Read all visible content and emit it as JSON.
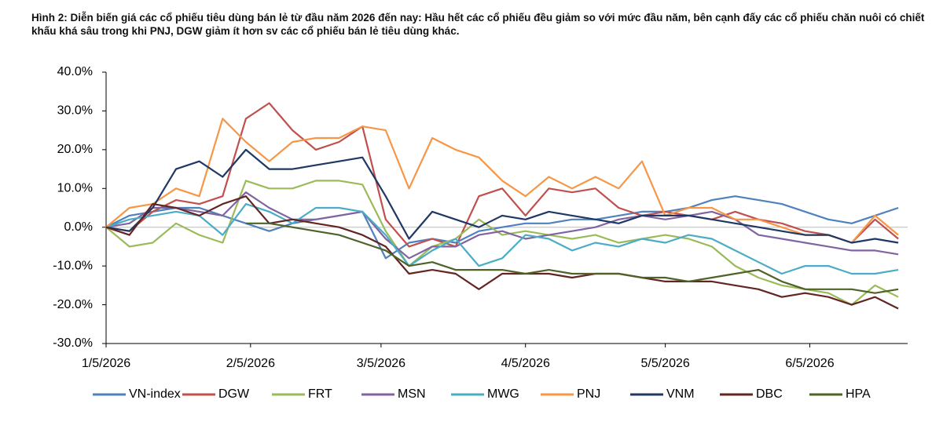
{
  "chart_data": {
    "type": "line",
    "title": "Hình 2: Diễn biến giá các cổ phiếu tiêu dùng bán lẻ từ đầu năm 2026 đến nay: Hầu hết các cổ phiếu đều giảm so với mức đầu năm, bên cạnh đấy các cổ phiếu chăn nuôi có chiết khấu khá sâu trong khi PNJ, DGW giảm ít hơn sv các cổ phiếu bán lẻ tiêu dùng khác.",
    "x": [
      "2026-01-05",
      "2026-01-10",
      "2026-01-15",
      "2026-01-20",
      "2026-01-25",
      "2026-01-30",
      "2026-02-04",
      "2026-02-09",
      "2026-02-14",
      "2026-02-19",
      "2026-02-24",
      "2026-03-01",
      "2026-03-06",
      "2026-03-11",
      "2026-03-16",
      "2026-03-21",
      "2026-03-26",
      "2026-03-31",
      "2026-04-05",
      "2026-04-10",
      "2026-04-15",
      "2026-04-20",
      "2026-04-25",
      "2026-04-30",
      "2026-05-05",
      "2026-05-10",
      "2026-05-15",
      "2026-05-20",
      "2026-05-25",
      "2026-05-30",
      "2026-06-04",
      "2026-06-09",
      "2026-06-14",
      "2026-06-19",
      "2026-06-24"
    ],
    "xlim": [
      "2026-01-05",
      "2026-06-26"
    ],
    "xticks": [
      {
        "value": "2026-01-05",
        "label": "1/5/2026"
      },
      {
        "value": "2026-02-05",
        "label": "2/5/2026"
      },
      {
        "value": "2026-03-05",
        "label": "3/5/2026"
      },
      {
        "value": "2026-04-05",
        "label": "4/5/2026"
      },
      {
        "value": "2026-05-05",
        "label": "5/5/2026"
      },
      {
        "value": "2026-06-05",
        "label": "6/5/2026"
      }
    ],
    "ylim": [
      -30,
      40
    ],
    "yticks": [
      {
        "value": 40,
        "label": "40.0%"
      },
      {
        "value": 30,
        "label": "30.0%"
      },
      {
        "value": 20,
        "label": "20.0%"
      },
      {
        "value": 10,
        "label": "10.0%"
      },
      {
        "value": 0,
        "label": "0.0%"
      },
      {
        "value": -10,
        "label": "-10.0%"
      },
      {
        "value": -20,
        "label": "-20.0%"
      },
      {
        "value": -30,
        "label": "-30.0%"
      }
    ],
    "legend": "bottom",
    "series": [
      {
        "name": "VN-index",
        "color": "#4f81bd",
        "values": [
          0,
          3,
          4,
          5,
          5,
          3,
          1,
          -1,
          1,
          2,
          3,
          4,
          -8,
          -4,
          -3,
          -4,
          -1,
          0,
          1,
          1,
          2,
          2,
          3,
          4,
          4,
          5,
          7,
          8,
          7,
          6,
          4,
          2,
          1,
          3,
          5
        ]
      },
      {
        "name": "DGW",
        "color": "#c0504d",
        "values": [
          0,
          -1,
          4,
          7,
          6,
          8,
          28,
          32,
          25,
          20,
          22,
          26,
          2,
          -5,
          -3,
          -5,
          8,
          10,
          3,
          10,
          9,
          10,
          5,
          3,
          4,
          3,
          2,
          4,
          2,
          1,
          -1,
          -2,
          -4,
          2,
          -3
        ]
      },
      {
        "name": "FRT",
        "color": "#9bbb59",
        "values": [
          0,
          -5,
          -4,
          1,
          -2,
          -4,
          12,
          10,
          10,
          12,
          12,
          11,
          -1,
          -10,
          -5,
          -3,
          2,
          -2,
          -1,
          -2,
          -3,
          -2,
          -4,
          -3,
          -2,
          -3,
          -5,
          -10,
          -13,
          -15,
          -16,
          -17,
          -20,
          -15,
          -18
        ]
      },
      {
        "name": "MSN",
        "color": "#8064a2",
        "values": [
          0,
          1,
          5,
          5,
          4,
          3,
          9,
          5,
          2,
          2,
          3,
          4,
          -3,
          -8,
          -5,
          -5,
          -2,
          -1,
          -3,
          -2,
          -1,
          0,
          2,
          3,
          2,
          3,
          4,
          2,
          -2,
          -3,
          -4,
          -5,
          -6,
          -6,
          -7
        ]
      },
      {
        "name": "MWG",
        "color": "#4bacc6",
        "values": [
          0,
          2,
          3,
          4,
          3,
          -2,
          6,
          4,
          1,
          5,
          5,
          4,
          -2,
          -10,
          -6,
          -3,
          -10,
          -8,
          -2,
          -3,
          -6,
          -4,
          -5,
          -3,
          -4,
          -2,
          -3,
          -6,
          -9,
          -12,
          -10,
          -10,
          -12,
          -12,
          -11
        ]
      },
      {
        "name": "PNJ",
        "color": "#f79646",
        "values": [
          0,
          5,
          6,
          10,
          8,
          28,
          22,
          17,
          22,
          23,
          23,
          26,
          25,
          10,
          23,
          20,
          18,
          12,
          8,
          13,
          10,
          13,
          10,
          17,
          3,
          5,
          5,
          2,
          2,
          0,
          -2,
          -2,
          -4,
          3,
          -2
        ]
      },
      {
        "name": "VNM",
        "color": "#1f3864",
        "values": [
          0,
          -1,
          5,
          15,
          17,
          13,
          20,
          15,
          15,
          16,
          17,
          18,
          8,
          -3,
          4,
          2,
          0,
          3,
          2,
          4,
          3,
          2,
          1,
          3,
          3,
          3,
          2,
          1,
          0,
          -1,
          -2,
          -2,
          -4,
          -3,
          -4
        ]
      },
      {
        "name": "DBC",
        "color": "#632523",
        "values": [
          0,
          -2,
          6,
          5,
          3,
          6,
          8,
          1,
          2,
          1,
          0,
          -2,
          -5,
          -12,
          -11,
          -12,
          -16,
          -12,
          -12,
          -12,
          -13,
          -12,
          -12,
          -13,
          -14,
          -14,
          -14,
          -15,
          -16,
          -18,
          -17,
          -18,
          -20,
          -18,
          -21
        ]
      },
      {
        "name": "HPA",
        "color": "#4f6228",
        "values": [
          null,
          null,
          null,
          null,
          null,
          null,
          1,
          1,
          0,
          -1,
          -2,
          -4,
          -6,
          -10,
          -9,
          -11,
          -11,
          -11,
          -12,
          -11,
          -12,
          -12,
          -12,
          -13,
          -13,
          -14,
          -13,
          -12,
          -11,
          -14,
          -16,
          -16,
          -16,
          -17,
          -16
        ]
      }
    ]
  }
}
